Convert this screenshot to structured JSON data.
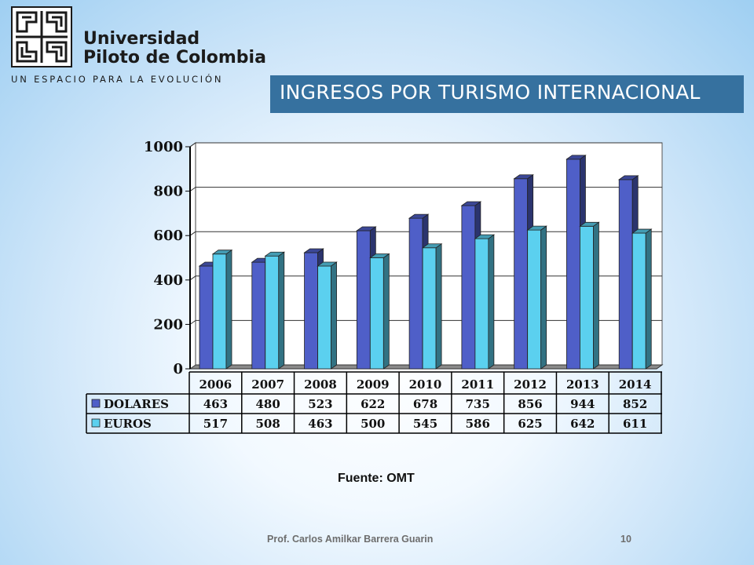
{
  "logo": {
    "name_line1": "Universidad",
    "name_line2": "Piloto de Colombia",
    "tagline": "UN ESPACIO PARA LA EVOLUCIÓN"
  },
  "slide": {
    "title": "INGRESOS POR TURISMO INTERNACIONAL",
    "source": "Fuente: OMT",
    "author": "Prof. Carlos Amilkar Barrera Guarin",
    "page_number": "10"
  },
  "colors": {
    "title_bar": "#36719f",
    "dolares": "#4f5fc8",
    "euros": "#5bd0ef"
  },
  "chart_data": {
    "type": "bar",
    "categories": [
      "2006",
      "2007",
      "2008",
      "2009",
      "2010",
      "2011",
      "2012",
      "2013",
      "2014"
    ],
    "series": [
      {
        "name": "DOLARES",
        "values": [
          463,
          480,
          523,
          622,
          678,
          735,
          856,
          944,
          852
        ]
      },
      {
        "name": "EUROS",
        "values": [
          517,
          508,
          463,
          500,
          545,
          586,
          625,
          642,
          611
        ]
      }
    ],
    "ylim": [
      0,
      1000
    ],
    "yticks": [
      0,
      200,
      400,
      600,
      800,
      1000
    ],
    "grid": true,
    "legend": "data-table",
    "three_d": true
  }
}
